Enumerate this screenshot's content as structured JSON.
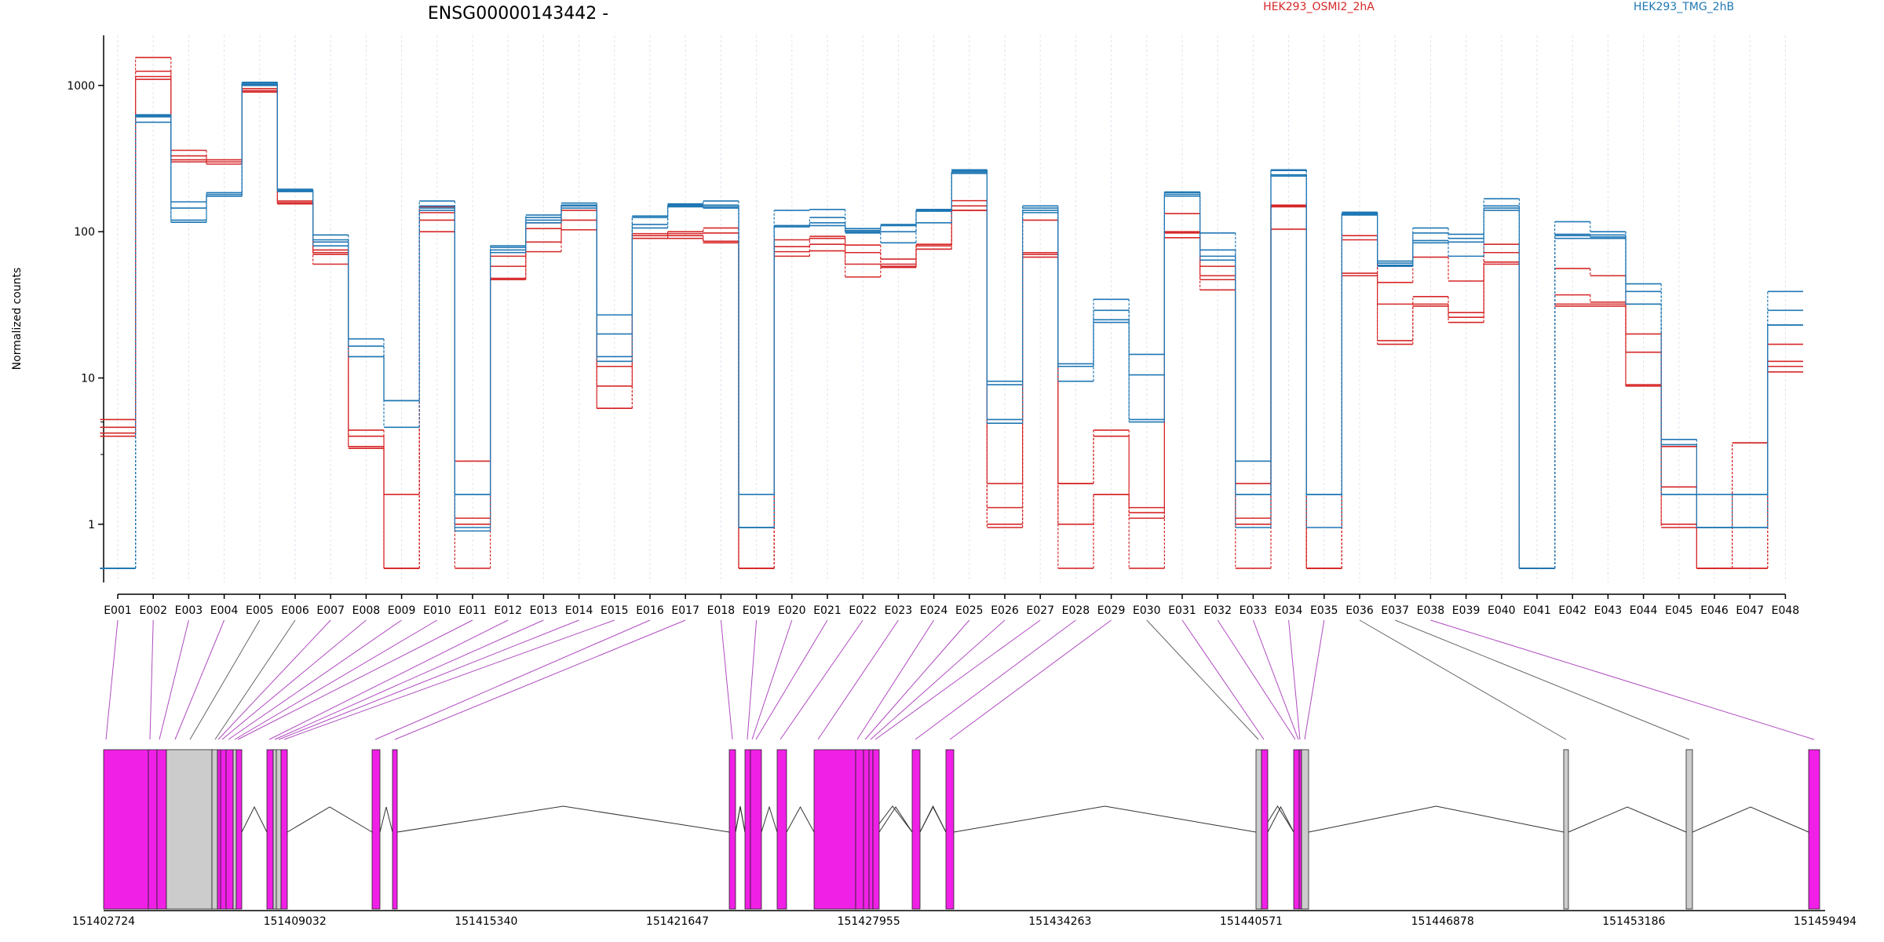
{
  "title": "ENSG00000143442 -",
  "legend": {
    "entries": [
      {
        "label": "HEK293_OSMI2_2hA",
        "color": "#d62728"
      },
      {
        "label": "HEK293_TMG_2hB",
        "color": "#1f77b4"
      }
    ],
    "placement": "top-right"
  },
  "colors": {
    "red": "#d62728",
    "blue": "#1f77b4",
    "exon_sig": "#f020e6",
    "exon_ns": "#cccccc",
    "link_sig": "#b04ac0",
    "link_ns": "#666666",
    "grid": "#dfe3ef"
  },
  "chart_data": {
    "type": "line",
    "ylabel": "Normalized counts",
    "xlabel": "",
    "y_scale": "log",
    "ylim": [
      0.4,
      2200
    ],
    "y_ticks": [
      1,
      10,
      100,
      1000
    ],
    "y_tick_labels": [
      "1",
      "10",
      "100",
      "1000"
    ],
    "categories": [
      "E001",
      "E002",
      "E003",
      "E004",
      "E005",
      "E006",
      "E007",
      "E008",
      "E009",
      "E010",
      "E011",
      "E012",
      "E013",
      "E014",
      "E015",
      "E016",
      "E017",
      "E018",
      "E019",
      "E020",
      "E021",
      "E022",
      "E023",
      "E024",
      "E025",
      "E026",
      "E027",
      "E028",
      "E029",
      "E030",
      "E031",
      "E032",
      "E033",
      "E034",
      "E035",
      "E036",
      "E037",
      "E038",
      "E039",
      "E040",
      "E041",
      "E042",
      "E043",
      "E044",
      "E045",
      "E046",
      "E047",
      "E048"
    ],
    "series": [
      {
        "group": "red",
        "values": [
          5.2,
          1550,
          360,
          310,
          1000,
          162,
          75,
          4.4,
          0.5,
          148,
          2.7,
          68,
          115,
          152,
          12,
          97,
          100,
          106,
          0.5,
          88,
          93,
          81,
          65,
          82,
          163,
          1.9,
          120,
          1.9,
          4.4,
          1.3,
          133,
          58,
          1.9,
          152,
          0.5,
          94,
          45,
          67,
          46,
          82,
          0.5,
          56,
          50,
          20,
          3.4,
          0.5,
          3.6,
          17
        ]
      },
      {
        "group": "red",
        "values": [
          4.6,
          1250,
          330,
          300,
          950,
          158,
          72,
          4.0,
          0.5,
          135,
          1.1,
          58,
          105,
          140,
          8.8,
          94,
          97,
          98,
          0.5,
          79,
          90,
          72,
          60,
          80,
          150,
          1.3,
          72,
          1.9,
          4.0,
          1.2,
          100,
          50,
          1.1,
          150,
          0.5,
          88,
          32,
          36,
          28,
          72,
          0.5,
          37,
          33,
          15,
          1.8,
          0.5,
          3.6,
          13
        ]
      },
      {
        "group": "red",
        "values": [
          4.2,
          1150,
          310,
          300,
          920,
          157,
          70,
          3.4,
          1.6,
          120,
          1.0,
          48,
          85,
          120,
          6.2,
          90,
          94,
          86,
          0.5,
          73,
          82,
          60,
          58,
          76,
          140,
          1.0,
          70,
          1.0,
          1.6,
          1.1,
          98,
          47,
          1.0,
          148,
          0.5,
          52,
          18,
          32,
          26,
          62,
          0.5,
          32,
          32,
          9.0,
          1.0,
          0.5,
          0.5,
          12
        ]
      },
      {
        "group": "red",
        "values": [
          4.0,
          1100,
          300,
          290,
          900,
          155,
          60,
          3.3,
          0.5,
          100,
          0.5,
          47,
          73,
          103,
          6.2,
          90,
          90,
          84,
          0.5,
          68,
          74,
          49,
          57,
          76,
          140,
          0.95,
          67,
          0.5,
          1.6,
          0.5,
          91,
          40,
          0.5,
          104,
          0.5,
          50,
          17,
          31,
          24,
          60,
          0.5,
          31,
          31,
          8.8,
          0.95,
          0.5,
          0.5,
          11
        ]
      },
      {
        "group": "blue",
        "values": [
          0.5,
          630,
          160,
          185,
          1050,
          195,
          95,
          18.5,
          7.0,
          162,
          1.6,
          80,
          130,
          157,
          27,
          128,
          155,
          162,
          1.6,
          140,
          142,
          105,
          112,
          142,
          265,
          9.5,
          150,
          12.5,
          34.5,
          14.5,
          187,
          98,
          2.7,
          265,
          1.6,
          136,
          63,
          106,
          96,
          168,
          0.5,
          117,
          100,
          44,
          3.8,
          1.6,
          1.6,
          39
        ]
      },
      {
        "group": "blue",
        "values": [
          0.5,
          620,
          145,
          180,
          1040,
          192,
          88,
          16.5,
          7.0,
          150,
          1.6,
          78,
          125,
          152,
          20,
          125,
          152,
          152,
          0.95,
          110,
          125,
          102,
          110,
          140,
          260,
          9.0,
          145,
          12.0,
          29,
          10.5,
          185,
          75,
          1.6,
          262,
          1.6,
          134,
          61,
          98,
          90,
          150,
          0.5,
          96,
          95,
          39,
          3.5,
          0.95,
          1.6,
          29
        ]
      },
      {
        "group": "blue",
        "values": [
          0.5,
          610,
          120,
          175,
          1020,
          190,
          85,
          14.0,
          7.0,
          145,
          0.95,
          75,
          120,
          150,
          14,
          112,
          150,
          148,
          0.95,
          110,
          115,
          100,
          100,
          138,
          255,
          5.2,
          140,
          12.0,
          25,
          5.2,
          180,
          68,
          1.6,
          245,
          1.6,
          132,
          59,
          87,
          85,
          145,
          0.5,
          94,
          92,
          32,
          1.6,
          0.95,
          0.95,
          23
        ]
      },
      {
        "group": "blue",
        "values": [
          0.5,
          560,
          116,
          175,
          1000,
          188,
          80,
          14.0,
          4.6,
          140,
          0.9,
          72,
          115,
          145,
          13,
          106,
          148,
          145,
          0.95,
          108,
          110,
          98,
          84,
          115,
          250,
          4.9,
          135,
          9.5,
          24,
          5.0,
          175,
          64,
          0.95,
          240,
          0.95,
          130,
          58,
          84,
          68,
          140,
          0.5,
          90,
          90,
          32,
          1.6,
          0.95,
          0.95,
          23
        ]
      }
    ]
  },
  "gene_model": {
    "coords": [
      "151402724",
      "151409032",
      "151415340",
      "151421647",
      "151427955",
      "151434263",
      "151440571",
      "151446878",
      "151453186",
      "151459494"
    ]
  }
}
